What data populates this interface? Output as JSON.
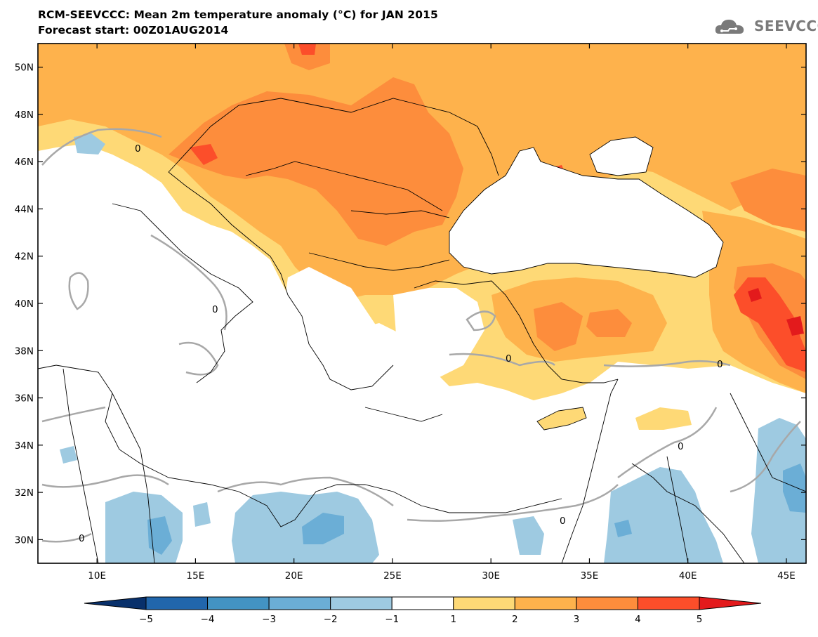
{
  "header": {
    "title": "RCM-SEEVCCC: Mean 2m temperature anomaly (°C) for JAN 2015",
    "subtitle": "Forecast start: 00Z01AUG2014"
  },
  "logo": {
    "text": "SEEVCCC",
    "icon": "cloud-icon"
  },
  "axes": {
    "lat_labels": [
      "50N",
      "48N",
      "46N",
      "44N",
      "42N",
      "40N",
      "38N",
      "36N",
      "34N",
      "32N",
      "30N"
    ],
    "lat_values": [
      50,
      48,
      46,
      44,
      42,
      40,
      38,
      36,
      34,
      32,
      30
    ],
    "lon_labels": [
      "10E",
      "15E",
      "20E",
      "25E",
      "30E",
      "35E",
      "40E",
      "45E"
    ],
    "lon_values": [
      10,
      15,
      20,
      25,
      30,
      35,
      40,
      45
    ],
    "lon_range": [
      7,
      46
    ],
    "lat_range": [
      29,
      51
    ]
  },
  "contour_label": "0",
  "colorbar": {
    "tick_labels": [
      "−5",
      "−4",
      "−3",
      "−2",
      "−1",
      "1",
      "2",
      "3",
      "4",
      "5"
    ],
    "colors": [
      "#08306b",
      "#2166ac",
      "#4393c3",
      "#6baed6",
      "#9ecae1",
      "#ffffff",
      "#fed976",
      "#feb24c",
      "#fd8d3c",
      "#fc4e2a",
      "#e31a1c"
    ]
  },
  "colors": {
    "light_orange": "#fed976",
    "orange": "#feb24c",
    "dark_orange": "#fd8d3c",
    "red": "#fc4e2a",
    "dark_red": "#e31a1c",
    "light_blue": "#9ecae1",
    "mid_blue": "#6baed6",
    "contour": "#a8a8a8"
  }
}
